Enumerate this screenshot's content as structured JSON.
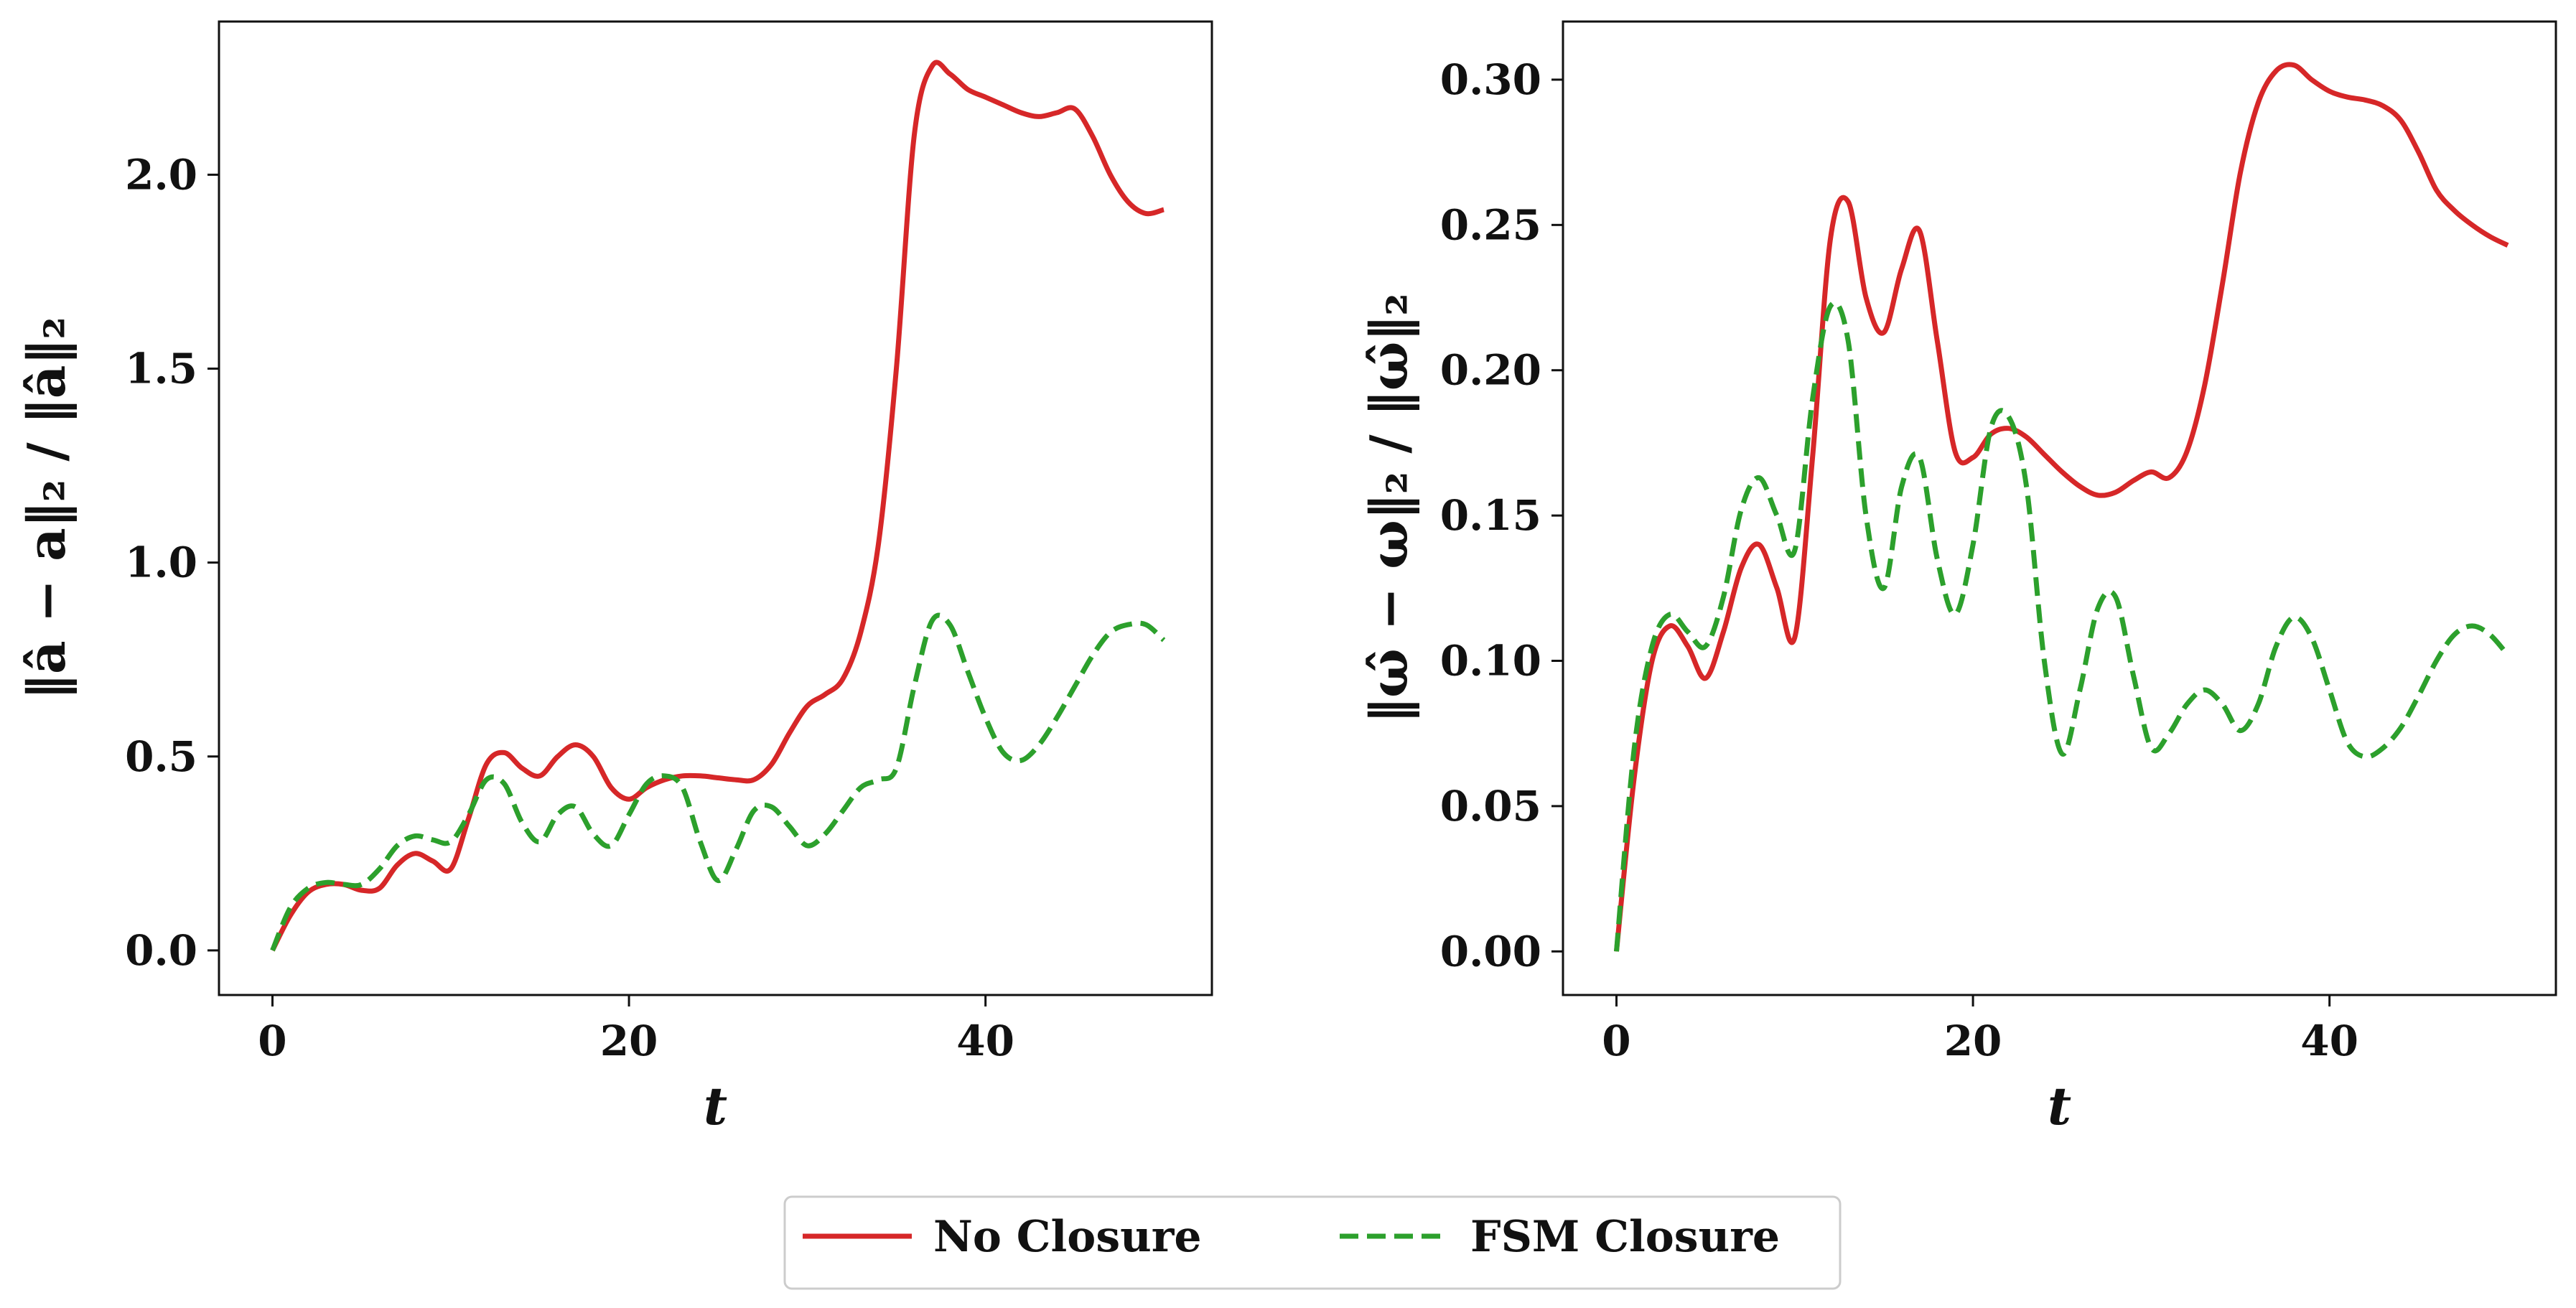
{
  "chart_data": [
    {
      "type": "line",
      "xlabel": "t",
      "ylabel": "‖â − a‖₂ / ‖â‖₂",
      "xlim": [
        -3.0,
        52.7
      ],
      "ylim": [
        -0.115,
        2.395
      ],
      "xticks": [
        0,
        20,
        40
      ],
      "xtick_labels": [
        "0",
        "20",
        "40"
      ],
      "yticks": [
        0.0,
        0.5,
        1.0,
        1.5,
        2.0
      ],
      "ytick_labels": [
        "0.0",
        "0.5",
        "1.0",
        "1.5",
        "2.0"
      ],
      "grid": false,
      "series": [
        {
          "name": "No Closure",
          "style": "solid",
          "x": [
            0,
            1,
            2,
            3,
            4,
            5,
            6,
            7,
            8,
            9,
            10,
            11,
            12,
            13,
            14,
            15,
            16,
            17,
            18,
            19,
            20,
            21,
            22,
            23,
            24,
            25,
            26,
            27,
            28,
            29,
            30,
            31,
            32,
            33,
            34,
            35,
            36,
            37,
            38,
            39,
            40,
            41,
            42,
            43,
            44,
            45,
            46,
            47,
            48,
            49,
            50
          ],
          "y": [
            0.0,
            0.09,
            0.15,
            0.17,
            0.17,
            0.155,
            0.16,
            0.22,
            0.25,
            0.23,
            0.21,
            0.34,
            0.48,
            0.51,
            0.47,
            0.45,
            0.5,
            0.53,
            0.5,
            0.42,
            0.39,
            0.42,
            0.44,
            0.45,
            0.45,
            0.445,
            0.44,
            0.44,
            0.48,
            0.56,
            0.63,
            0.66,
            0.7,
            0.82,
            1.05,
            1.5,
            2.1,
            2.28,
            2.26,
            2.22,
            2.2,
            2.18,
            2.16,
            2.15,
            2.16,
            2.17,
            2.1,
            2.0,
            1.93,
            1.9,
            1.91
          ]
        },
        {
          "name": "FSM Closure",
          "style": "dashed",
          "x": [
            0,
            1,
            2,
            3,
            4,
            5,
            6,
            7,
            8,
            9,
            10,
            11,
            12,
            13,
            14,
            15,
            16,
            17,
            18,
            19,
            20,
            21,
            22,
            23,
            24,
            25,
            26,
            27,
            28,
            29,
            30,
            31,
            32,
            33,
            34,
            35,
            36,
            37,
            38,
            39,
            40,
            41,
            42,
            43,
            44,
            45,
            46,
            47,
            48,
            49,
            50
          ],
          "y": [
            0.0,
            0.11,
            0.16,
            0.175,
            0.17,
            0.17,
            0.21,
            0.27,
            0.295,
            0.285,
            0.28,
            0.35,
            0.44,
            0.43,
            0.33,
            0.28,
            0.35,
            0.37,
            0.3,
            0.27,
            0.35,
            0.43,
            0.45,
            0.42,
            0.28,
            0.18,
            0.26,
            0.36,
            0.37,
            0.32,
            0.27,
            0.3,
            0.36,
            0.42,
            0.44,
            0.47,
            0.68,
            0.85,
            0.84,
            0.72,
            0.6,
            0.51,
            0.49,
            0.53,
            0.6,
            0.68,
            0.76,
            0.82,
            0.84,
            0.84,
            0.8
          ]
        }
      ]
    },
    {
      "type": "line",
      "xlabel": "t",
      "ylabel": "‖ω̂ − ω‖₂ / ‖ω̂‖₂",
      "xlim": [
        -3.0,
        52.7
      ],
      "ylim": [
        -0.015,
        0.32
      ],
      "xticks": [
        0,
        20,
        40
      ],
      "xtick_labels": [
        "0",
        "20",
        "40"
      ],
      "yticks": [
        0.0,
        0.05,
        0.1,
        0.15,
        0.2,
        0.25,
        0.3
      ],
      "ytick_labels": [
        "0.00",
        "0.05",
        "0.10",
        "0.15",
        "0.20",
        "0.25",
        "0.30"
      ],
      "grid": false,
      "series": [
        {
          "name": "No Closure",
          "style": "solid",
          "x": [
            0,
            1,
            2,
            3,
            4,
            5,
            6,
            7,
            8,
            9,
            10,
            11,
            12,
            13,
            14,
            15,
            16,
            17,
            18,
            19,
            20,
            21,
            22,
            23,
            24,
            25,
            26,
            27,
            28,
            29,
            30,
            31,
            32,
            33,
            34,
            35,
            36,
            37,
            38,
            39,
            40,
            41,
            42,
            43,
            44,
            45,
            46,
            47,
            48,
            49,
            50
          ],
          "y": [
            0.0,
            0.06,
            0.1,
            0.112,
            0.105,
            0.094,
            0.11,
            0.132,
            0.14,
            0.125,
            0.108,
            0.17,
            0.245,
            0.258,
            0.225,
            0.213,
            0.235,
            0.248,
            0.21,
            0.172,
            0.17,
            0.178,
            0.18,
            0.177,
            0.171,
            0.165,
            0.16,
            0.157,
            0.158,
            0.162,
            0.165,
            0.163,
            0.172,
            0.195,
            0.23,
            0.268,
            0.292,
            0.303,
            0.305,
            0.3,
            0.296,
            0.294,
            0.293,
            0.291,
            0.286,
            0.275,
            0.262,
            0.255,
            0.25,
            0.246,
            0.243
          ]
        },
        {
          "name": "FSM Closure",
          "style": "dashed",
          "x": [
            0,
            1,
            2,
            3,
            4,
            5,
            6,
            7,
            8,
            9,
            10,
            11,
            12,
            13,
            14,
            15,
            16,
            17,
            18,
            19,
            20,
            21,
            22,
            23,
            24,
            25,
            26,
            27,
            28,
            29,
            30,
            31,
            32,
            33,
            34,
            35,
            36,
            37,
            38,
            39,
            40,
            41,
            42,
            43,
            44,
            45,
            46,
            47,
            48,
            49,
            50
          ],
          "y": [
            0.0,
            0.07,
            0.105,
            0.116,
            0.11,
            0.105,
            0.122,
            0.152,
            0.163,
            0.15,
            0.138,
            0.19,
            0.222,
            0.21,
            0.15,
            0.125,
            0.16,
            0.17,
            0.135,
            0.116,
            0.14,
            0.18,
            0.184,
            0.16,
            0.1,
            0.068,
            0.09,
            0.118,
            0.122,
            0.095,
            0.07,
            0.075,
            0.085,
            0.09,
            0.085,
            0.076,
            0.085,
            0.105,
            0.115,
            0.108,
            0.09,
            0.072,
            0.067,
            0.07,
            0.077,
            0.088,
            0.1,
            0.109,
            0.112,
            0.109,
            0.102
          ]
        }
      ]
    }
  ],
  "legend": {
    "entries": [
      "No Closure",
      "FSM Closure"
    ],
    "placement": "bottom-center"
  },
  "colors": {
    "no_closure": "#d62728",
    "fsm_closure": "#2ca02c",
    "axes": "#111111"
  }
}
